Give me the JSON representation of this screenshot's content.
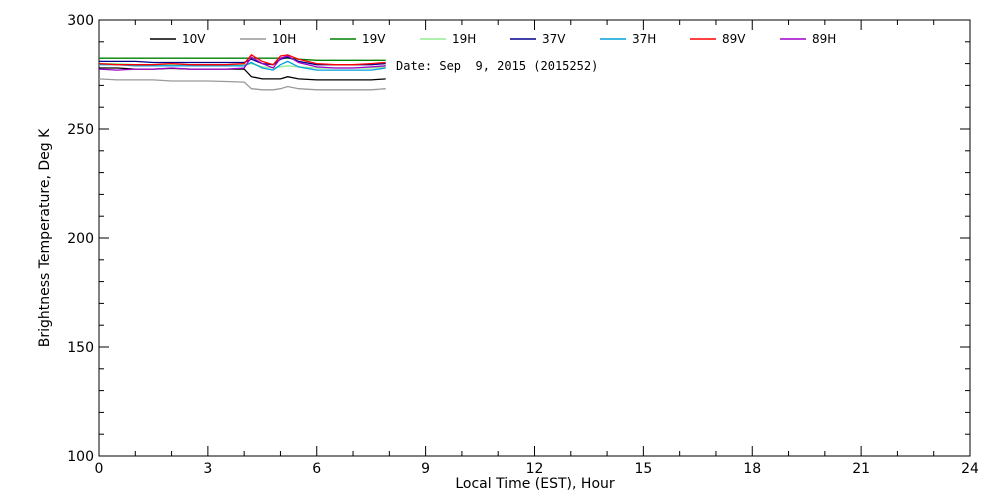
{
  "chart_data": {
    "type": "line",
    "xlabel": "Local Time (EST), Hour",
    "ylabel": "Brightness Temperature, Deg K",
    "xlim": [
      0,
      24
    ],
    "ylim": [
      100,
      300
    ],
    "xticks": [
      0,
      3,
      6,
      9,
      12,
      15,
      18,
      21,
      24
    ],
    "yticks": [
      100,
      150,
      200,
      250,
      300
    ],
    "grid": false,
    "legend_position": "top",
    "annotation": "Date: Sep  9, 2015 (2015252)",
    "x": [
      0,
      0.5,
      1,
      1.5,
      2,
      2.5,
      3,
      3.5,
      4,
      4.2,
      4.5,
      4.8,
      5,
      5.2,
      5.5,
      6,
      6.5,
      7,
      7.5,
      7.9
    ],
    "series": [
      {
        "name": "10V",
        "color": "#000000",
        "values": [
          278,
          278,
          277.5,
          277.5,
          277.8,
          277.5,
          277.5,
          277.5,
          277.5,
          274,
          273,
          273,
          273,
          274,
          273,
          272.5,
          272.5,
          272.5,
          272.5,
          273
        ]
      },
      {
        "name": "10H",
        "color": "#999999",
        "values": [
          273,
          272.5,
          272.5,
          272.5,
          272,
          272,
          272,
          271.8,
          271.5,
          268.5,
          268,
          268,
          268.5,
          269.5,
          268.5,
          268,
          268,
          268,
          268,
          268.5
        ]
      },
      {
        "name": "19V",
        "color": "#008000",
        "values": [
          282.5,
          282.5,
          282.5,
          282.5,
          282.5,
          282.5,
          282.5,
          282.5,
          282.5,
          282.5,
          282.5,
          282.5,
          282.5,
          282.5,
          282,
          281.5,
          281.5,
          281.5,
          281.5,
          281.5
        ]
      },
      {
        "name": "19H",
        "color": "#90EE90",
        "values": [
          280,
          280,
          279.5,
          279.5,
          279.5,
          279.5,
          279.5,
          279.5,
          279.5,
          280,
          278.5,
          278,
          278.5,
          279,
          278.5,
          278,
          278,
          278,
          278,
          278.5
        ]
      },
      {
        "name": "37V",
        "color": "#00008B",
        "values": [
          281,
          281,
          281,
          280.5,
          280.5,
          280.5,
          280.5,
          280.5,
          280.5,
          282,
          280,
          279.5,
          282,
          283,
          281,
          279.5,
          279.5,
          279.5,
          279.5,
          280
        ]
      },
      {
        "name": "37H",
        "color": "#00A0D8",
        "values": [
          279.5,
          279.5,
          279,
          279,
          279,
          279,
          279,
          279,
          279,
          280.5,
          278,
          277,
          279.5,
          281,
          278.5,
          277,
          277,
          277,
          277,
          278
        ]
      },
      {
        "name": "89V",
        "color": "#FF0000",
        "values": [
          280,
          279.5,
          279.5,
          279.5,
          280,
          279.5,
          279.5,
          279.5,
          280,
          284,
          281,
          279.5,
          283.5,
          284,
          282,
          280,
          279.5,
          279.5,
          280,
          280.5
        ]
      },
      {
        "name": "89H",
        "color": "#A000C8",
        "values": [
          277.5,
          277,
          277.5,
          277.5,
          278,
          277.5,
          277.5,
          277.5,
          278,
          283,
          280,
          278,
          282.5,
          283.5,
          280.5,
          278.5,
          278,
          278,
          278.5,
          279
        ]
      }
    ]
  }
}
